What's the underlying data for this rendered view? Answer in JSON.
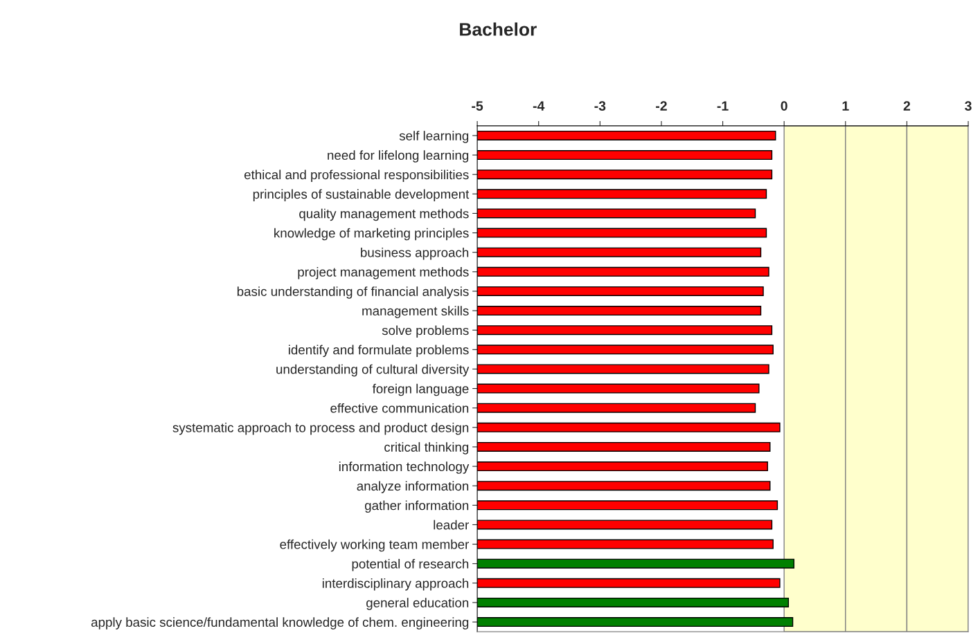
{
  "chart_data": {
    "type": "bar",
    "orientation": "horizontal",
    "title": "Bachelor",
    "categories": [
      "self learning",
      "need for lifelong learning",
      "ethical and professional responsibilities",
      "principles of sustainable development",
      "quality management methods",
      "knowledge of marketing principles",
      "business approach",
      "project management methods",
      "basic understanding of financial analysis",
      "management skills",
      "solve problems",
      "identify and formulate problems",
      "understanding of cultural diversity",
      "foreign language",
      "effective communication",
      "systematic approach to process and product design",
      "critical thinking",
      "information technology",
      "analyze information",
      "gather information",
      "leader",
      "effectively working team member",
      "potential of research",
      "interdisciplinary approach",
      "general education",
      "apply basic science/fundamental knowledge of chem. engineering"
    ],
    "values": [
      4.86,
      4.8,
      4.8,
      4.71,
      4.53,
      4.71,
      4.62,
      4.75,
      4.66,
      4.62,
      4.8,
      4.82,
      4.75,
      4.59,
      4.53,
      4.93,
      4.77,
      4.73,
      4.77,
      4.89,
      4.8,
      4.82,
      5.16,
      4.93,
      5.07,
      5.14
    ],
    "base": [
      -5,
      -5,
      -5,
      -5,
      -5,
      -5,
      -5,
      -5,
      -5,
      -5,
      -5,
      -5,
      -5,
      -5,
      -5,
      -5,
      -5,
      -5,
      -5,
      -5,
      -5,
      -5,
      -5,
      -5,
      -5,
      -5
    ],
    "colors": [
      "#ff0000",
      "#ff0000",
      "#ff0000",
      "#ff0000",
      "#ff0000",
      "#ff0000",
      "#ff0000",
      "#ff0000",
      "#ff0000",
      "#ff0000",
      "#ff0000",
      "#ff0000",
      "#ff0000",
      "#ff0000",
      "#ff0000",
      "#ff0000",
      "#ff0000",
      "#ff0000",
      "#ff0000",
      "#ff0000",
      "#ff0000",
      "#ff0000",
      "#008000",
      "#ff0000",
      "#008000",
      "#008000"
    ],
    "xlim": [
      -5,
      3
    ],
    "xticks": [
      -5,
      -4,
      -3,
      -2,
      -1,
      0,
      1,
      2,
      3
    ],
    "bands": [
      {
        "axis": "x",
        "from": 0,
        "to": 1,
        "color": "#ffffcc"
      },
      {
        "axis": "x",
        "from": 1,
        "to": 2,
        "color": "#ffffcc"
      },
      {
        "axis": "x",
        "from": 2,
        "to": 3,
        "color": "#ffffcc"
      }
    ],
    "grid": false
  }
}
